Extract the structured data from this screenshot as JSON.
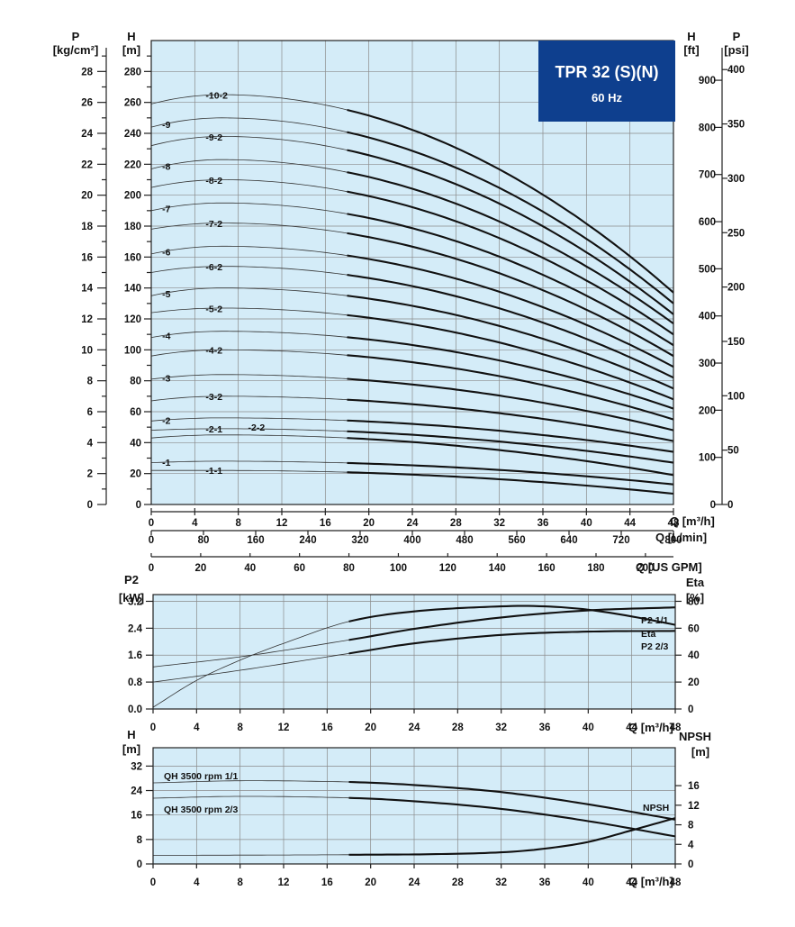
{
  "chart_data": [
    {
      "type": "line",
      "panel": "head",
      "title_box": {
        "line1": "TPR 32 (S)(N)",
        "line2": "60 Hz",
        "color": "#0e3f8e"
      },
      "x_axis": {
        "label": "Q [m³/h]",
        "range": [
          0,
          48
        ],
        "ticks": [
          0,
          4,
          8,
          12,
          16,
          20,
          24,
          28,
          32,
          36,
          40,
          44,
          48
        ]
      },
      "x_axis_lmin": {
        "label": "Q [L/min]",
        "ticks": [
          0,
          80,
          160,
          240,
          320,
          400,
          480,
          560,
          640,
          720,
          800
        ]
      },
      "x_axis_gpm": {
        "label": "Q [US GPM]",
        "ticks": [
          0,
          20,
          40,
          60,
          80,
          100,
          120,
          140,
          160,
          180,
          200
        ]
      },
      "y_axis_h": {
        "label_top": "H",
        "label_unit": "[m]",
        "range": [
          0,
          300
        ],
        "ticks": [
          0,
          20,
          40,
          60,
          80,
          100,
          120,
          140,
          160,
          180,
          200,
          220,
          240,
          260,
          280
        ]
      },
      "y_axis_p": {
        "label_top": "P",
        "label_unit": "[kg/cm²]",
        "ticks": [
          0,
          2,
          4,
          6,
          8,
          10,
          12,
          14,
          16,
          18,
          20,
          22,
          24,
          26,
          28
        ]
      },
      "y_axis_hft": {
        "label_top": "H",
        "label_unit": "[ft]",
        "ticks": [
          0,
          100,
          200,
          300,
          400,
          500,
          600,
          700,
          800,
          900
        ]
      },
      "y_axis_psi": {
        "label_top": "P",
        "label_unit": "[psi]",
        "ticks": [
          0,
          50,
          100,
          150,
          200,
          250,
          300,
          350,
          400
        ]
      },
      "thick_from_x": 18,
      "series": [
        {
          "name": "-10-2",
          "y0": 259,
          "ymax": 265,
          "y48": 137
        },
        {
          "name": "-9",
          "y0": 244,
          "ymax": 250,
          "y48": 130
        },
        {
          "name": "-9-2",
          "y0": 232,
          "ymax": 238,
          "y48": 123
        },
        {
          "name": "-8",
          "y0": 217,
          "ymax": 223,
          "y48": 117
        },
        {
          "name": "-8-2",
          "y0": 205,
          "ymax": 210,
          "y48": 110
        },
        {
          "name": "-7",
          "y0": 190,
          "ymax": 195,
          "y48": 103
        },
        {
          "name": "-7-2",
          "y0": 178,
          "ymax": 182,
          "y48": 96
        },
        {
          "name": "-6",
          "y0": 162,
          "ymax": 167,
          "y48": 89
        },
        {
          "name": "-6-2",
          "y0": 150,
          "ymax": 154,
          "y48": 82
        },
        {
          "name": "-5",
          "y0": 135,
          "ymax": 140,
          "y48": 75
        },
        {
          "name": "-5-2",
          "y0": 124,
          "ymax": 127,
          "y48": 68
        },
        {
          "name": "-4",
          "y0": 108,
          "ymax": 112,
          "y48": 62
        },
        {
          "name": "-4-2",
          "y0": 96,
          "ymax": 100,
          "y48": 55
        },
        {
          "name": "-3",
          "y0": 81,
          "ymax": 84,
          "y48": 48
        },
        {
          "name": "-3-2",
          "y0": 67,
          "ymax": 70,
          "y48": 41
        },
        {
          "name": "-2",
          "y0": 54,
          "ymax": 56,
          "y48": 34
        },
        {
          "name": "-2-1",
          "y0": 48,
          "ymax": 49,
          "y48": 27
        },
        {
          "name": "-2-2",
          "y0": 43,
          "ymax": 45,
          "y48": 19
        },
        {
          "name": "-1",
          "y0": 27,
          "ymax": 28,
          "y48": 13
        },
        {
          "name": "-1-1",
          "y0": 22,
          "ymax": 22,
          "y48": 7
        }
      ]
    },
    {
      "type": "line",
      "panel": "power",
      "x_axis": {
        "label": "Q [m³/h]",
        "range": [
          0,
          48
        ],
        "ticks": [
          0,
          4,
          8,
          12,
          16,
          20,
          24,
          28,
          32,
          36,
          40,
          44,
          48
        ]
      },
      "y_axis_left": {
        "label_top": "P2",
        "label_unit": "[kW]",
        "range": [
          0,
          3.2
        ],
        "ticks": [
          "0.0",
          "0.8",
          "1.6",
          "2.4",
          "3.2"
        ]
      },
      "y_axis_right": {
        "label_top": "Eta",
        "label_unit": "[%]",
        "ticks": [
          0,
          20,
          40,
          60,
          80
        ]
      },
      "series": [
        {
          "name": "P2 1/1",
          "points": [
            [
              0,
              1.25
            ],
            [
              8,
              1.55
            ],
            [
              18,
              2.05
            ],
            [
              24,
              2.38
            ],
            [
              32,
              2.72
            ],
            [
              40,
              2.93
            ],
            [
              48,
              3.02
            ]
          ]
        },
        {
          "name": "Eta",
          "points": [
            [
              0,
              0.05
            ],
            [
              4,
              0.85
            ],
            [
              8,
              1.45
            ],
            [
              12,
              1.95
            ],
            [
              18,
              2.6
            ],
            [
              24,
              2.9
            ],
            [
              32,
              3.05
            ],
            [
              36,
              3.05
            ],
            [
              40,
              2.95
            ],
            [
              44,
              2.75
            ],
            [
              48,
              2.5
            ]
          ]
        },
        {
          "name": "P2 2/3",
          "points": [
            [
              0,
              0.8
            ],
            [
              8,
              1.15
            ],
            [
              18,
              1.65
            ],
            [
              24,
              1.95
            ],
            [
              32,
              2.2
            ],
            [
              40,
              2.3
            ],
            [
              48,
              2.32
            ]
          ]
        }
      ]
    },
    {
      "type": "line",
      "panel": "qh",
      "x_axis": {
        "label": "Q [m³/h]",
        "range": [
          0,
          48
        ],
        "ticks": [
          0,
          4,
          8,
          12,
          16,
          20,
          24,
          28,
          32,
          36,
          40,
          44,
          48
        ]
      },
      "y_axis_left": {
        "label_top": "H",
        "label_unit": "[m]",
        "range": [
          0,
          38
        ],
        "ticks": [
          0,
          8,
          16,
          24,
          32
        ]
      },
      "y_axis_right": {
        "label_top": "NPSH",
        "label_unit": "[m]",
        "ticks": [
          0,
          4,
          8,
          12,
          16
        ]
      },
      "series": [
        {
          "name": "QH 3500 rpm 1/1",
          "points": [
            [
              0,
              26.5
            ],
            [
              8,
              27.2
            ],
            [
              18,
              26.8
            ],
            [
              24,
              25.8
            ],
            [
              32,
              23.5
            ],
            [
              40,
              19.5
            ],
            [
              48,
              14.5
            ]
          ]
        },
        {
          "name": "QH 3500 rpm 2/3",
          "points": [
            [
              0,
              21.5
            ],
            [
              8,
              22.1
            ],
            [
              18,
              21.6
            ],
            [
              24,
              20.5
            ],
            [
              32,
              18.0
            ],
            [
              40,
              14.0
            ],
            [
              48,
              9.0
            ]
          ]
        },
        {
          "name": "NPSH",
          "points": [
            [
              0,
              2.8
            ],
            [
              18,
              3.0
            ],
            [
              26,
              3.2
            ],
            [
              32,
              3.8
            ],
            [
              36,
              5.0
            ],
            [
              40,
              7.2
            ],
            [
              44,
              11.0
            ],
            [
              48,
              15.0
            ]
          ]
        }
      ],
      "label_qh11": "QH 3500 rpm 1/1",
      "label_qh23": "QH 3500 rpm 2/3",
      "label_npsh": "NPSH"
    }
  ]
}
